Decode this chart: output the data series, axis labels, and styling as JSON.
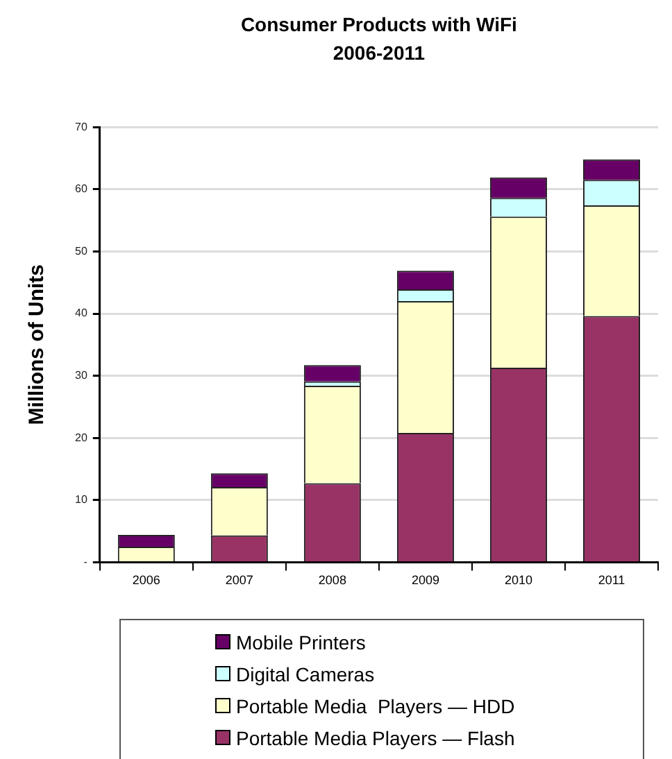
{
  "chart_data": {
    "type": "bar",
    "title": "Consumer Products with WiFi",
    "subtitle": "2006-2011",
    "ylabel": "Millions of Units",
    "categories": [
      "2006",
      "2007",
      "2008",
      "2009",
      "2010",
      "2011"
    ],
    "series": [
      {
        "name": "Portable Media Players — Flash",
        "color": "#993366",
        "values": [
          0,
          4.3,
          12.7,
          20.8,
          31.3,
          39.6
        ]
      },
      {
        "name": "Portable Media  Players — HDD",
        "color": "#ffffcc",
        "values": [
          2.5,
          7.8,
          15.7,
          21.2,
          24.3,
          17.8
        ]
      },
      {
        "name": "Digital Cameras",
        "color": "#ccffff",
        "values": [
          0,
          0,
          0.7,
          1.9,
          3,
          4.1
        ]
      },
      {
        "name": "Mobile Printers",
        "color": "#660066",
        "values": [
          1.9,
          2.2,
          2.6,
          3,
          3.3,
          3.3
        ]
      }
    ],
    "stacked": true,
    "ylim": [
      0,
      70
    ],
    "yticks": [
      {
        "value": 0,
        "label": "-"
      },
      10,
      20,
      30,
      40,
      50,
      60,
      70
    ],
    "grid": "y",
    "legend": "bottom"
  }
}
